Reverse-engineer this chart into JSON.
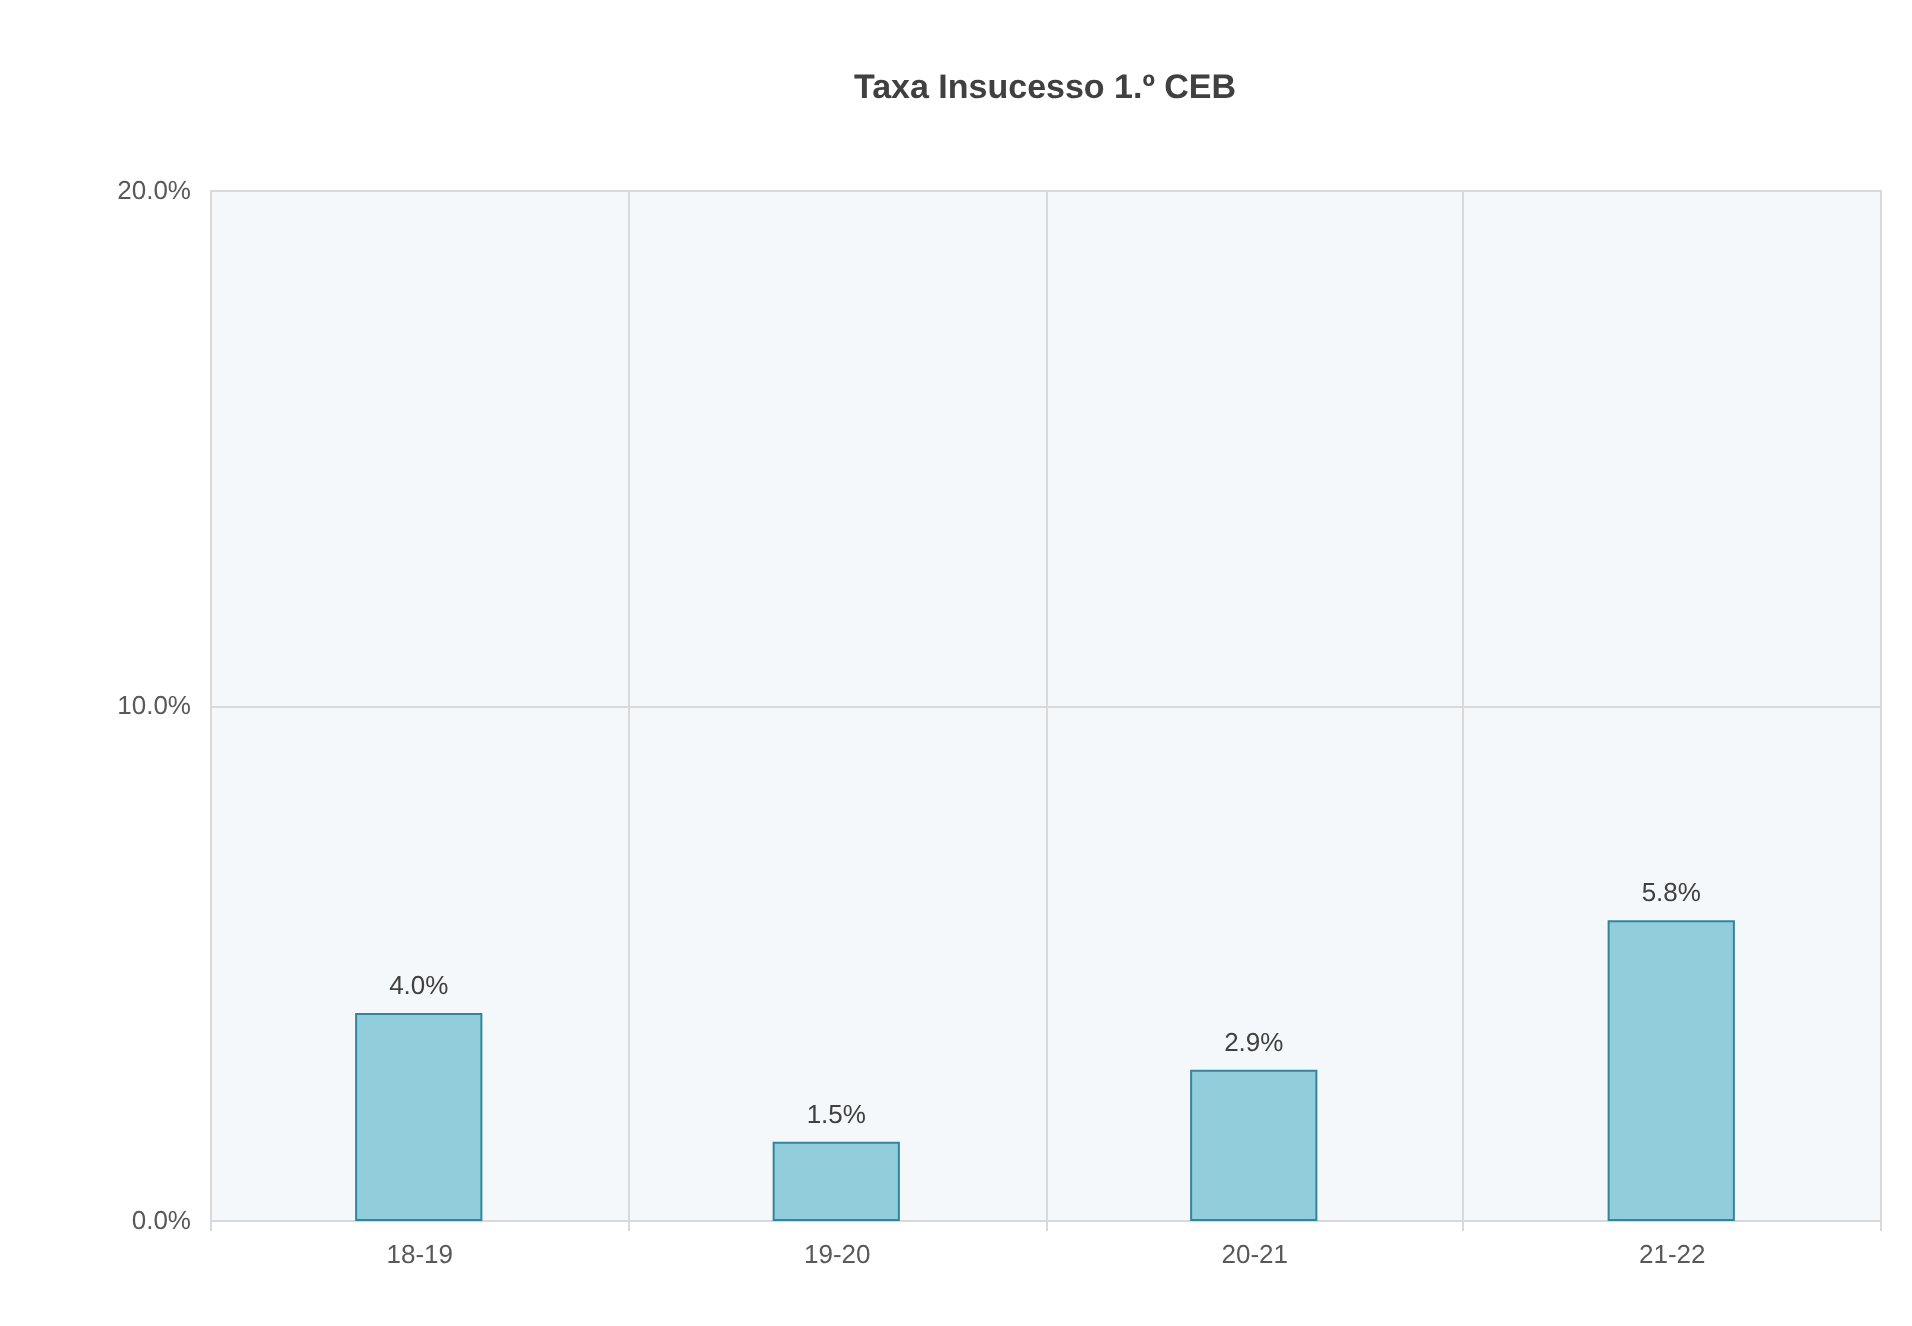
{
  "chart_data": {
    "type": "bar",
    "title": "Taxa Insucesso 1.º CEB",
    "categories": [
      "18-19",
      "19-20",
      "20-21",
      "21-22"
    ],
    "values": [
      4.0,
      1.5,
      2.9,
      5.8
    ],
    "value_labels": [
      "4.0%",
      "1.5%",
      "2.9%",
      "5.8%"
    ],
    "color": "#92cddc",
    "ylim": [
      0,
      20
    ],
    "yticks": [
      {
        "value": 0,
        "label": "0.0%"
      },
      {
        "value": 10,
        "label": "10.0%"
      },
      {
        "value": 20,
        "label": "20.0%"
      }
    ],
    "grid": true
  }
}
